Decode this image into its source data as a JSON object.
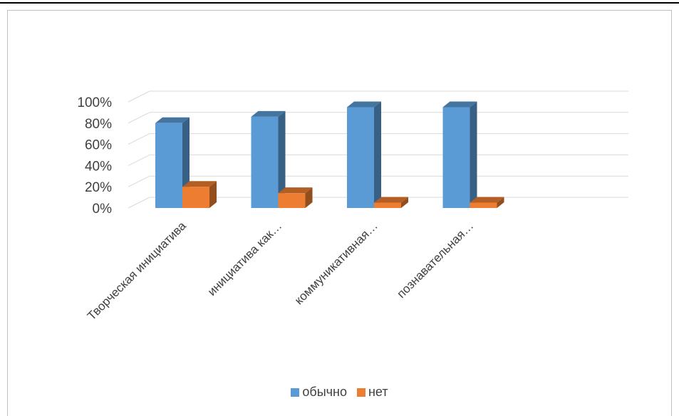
{
  "chart_data": {
    "type": "bar",
    "style": "3d-clustered-column",
    "categories": [
      "Творческая инициатива",
      "инициатива как…",
      "коммуникативная…",
      "познавательная…"
    ],
    "series": [
      {
        "name": "обычно",
        "color": "#5B9BD5",
        "values": [
          80,
          86,
          95,
          95
        ]
      },
      {
        "name": "нет",
        "color": "#ED7D31",
        "values": [
          20,
          14,
          5,
          5
        ]
      }
    ],
    "yticks": [
      "0%",
      "20%",
      "40%",
      "60%",
      "80%",
      "100%"
    ],
    "ylim": [
      0,
      100
    ],
    "grid": true,
    "legend": "bottom"
  }
}
